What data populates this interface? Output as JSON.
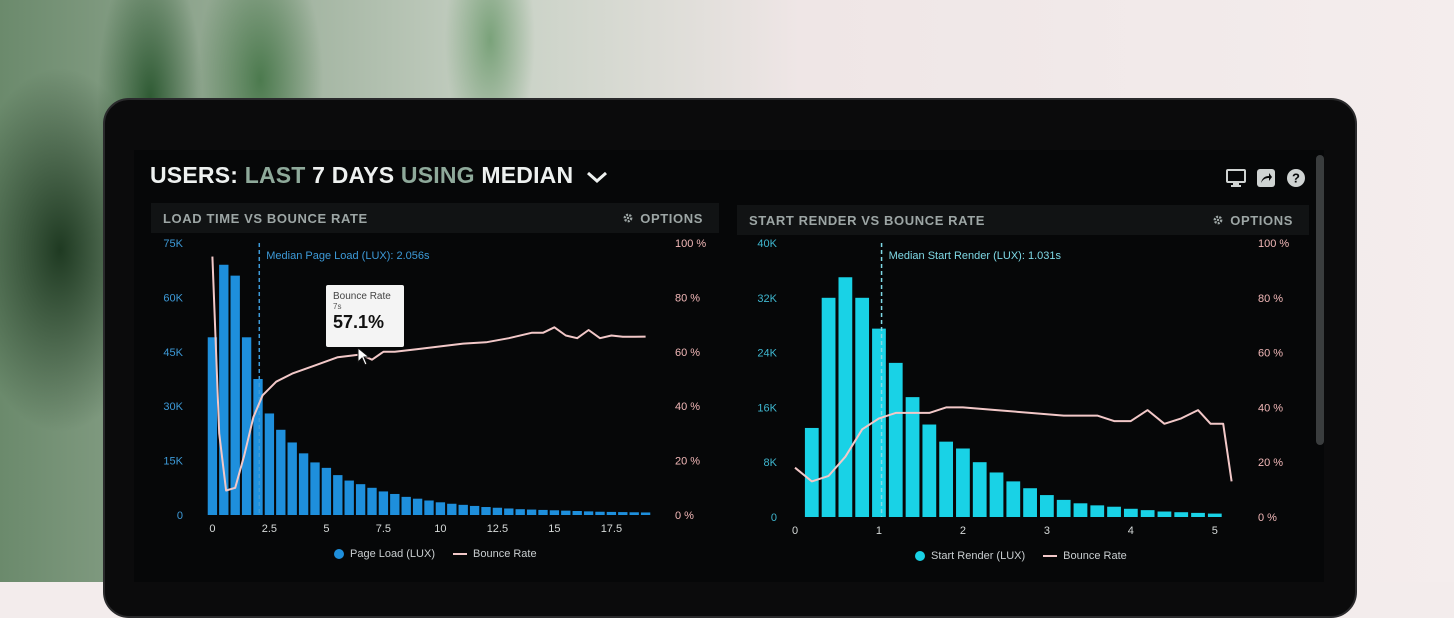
{
  "header": {
    "title_parts": [
      "USERS:",
      "LAST",
      "7 DAYS",
      "USING",
      "MEDIAN"
    ],
    "icons": [
      "monitor-icon",
      "share-icon",
      "help-icon"
    ]
  },
  "panels": [
    {
      "title": "LOAD TIME VS BOUNCE RATE",
      "options_label": "OPTIONS",
      "legend": [
        "Page Load (LUX)",
        "Bounce Rate"
      ]
    },
    {
      "title": "START RENDER VS BOUNCE RATE",
      "options_label": "OPTIONS",
      "legend": [
        "Start Render (LUX)",
        "Bounce Rate"
      ]
    }
  ],
  "tooltip": {
    "label": "Bounce Rate",
    "x": "7s",
    "value": "57.1%"
  },
  "colors": {
    "bar_left": "#1e8fdc",
    "bar_right": "#19d2e6",
    "bounce": "#f2c8c8",
    "median_left": "#3d9ad8",
    "median_right": "#7fd9e6"
  },
  "chart_data": [
    {
      "type": "bar",
      "series": [
        {
          "name": "Page Load (LUX)",
          "axis": "left",
          "x": [
            0,
            0.5,
            1,
            1.5,
            2,
            2.5,
            3,
            3.5,
            4,
            4.5,
            5,
            5.5,
            6,
            6.5,
            7,
            7.5,
            8,
            8.5,
            9,
            9.5,
            10,
            10.5,
            11,
            11.5,
            12,
            12.5,
            13,
            13.5,
            14,
            14.5,
            15,
            15.5,
            16,
            16.5,
            17,
            17.5,
            18,
            18.5,
            19
          ],
          "values": [
            49000,
            69000,
            66000,
            49000,
            37500,
            28000,
            23500,
            20000,
            17000,
            14500,
            13000,
            11000,
            9500,
            8500,
            7500,
            6500,
            5800,
            5000,
            4500,
            4000,
            3500,
            3100,
            2800,
            2500,
            2200,
            2000,
            1800,
            1600,
            1500,
            1400,
            1300,
            1200,
            1100,
            1000,
            900,
            850,
            800,
            750,
            700
          ]
        },
        {
          "name": "Bounce Rate",
          "axis": "right",
          "type": "line",
          "x": [
            0,
            0.3,
            0.6,
            1,
            1.4,
            1.8,
            2.2,
            2.8,
            3.5,
            4.5,
            5.5,
            6.5,
            7,
            7.5,
            8,
            9,
            10,
            11,
            12,
            13,
            14,
            14.5,
            15,
            15.5,
            16,
            16.5,
            17,
            17.5,
            18,
            18.5,
            19
          ],
          "values": [
            95,
            30,
            9,
            10,
            22,
            36,
            44,
            49,
            52,
            55,
            58,
            59,
            57.1,
            60,
            60,
            61,
            62,
            63,
            63.5,
            65,
            67,
            67,
            69,
            66,
            65,
            68,
            65,
            66,
            65.5,
            65.5,
            65.6
          ]
        }
      ],
      "x_ticks": [
        "0",
        "2.5",
        "5",
        "7.5",
        "10",
        "12.5",
        "15",
        "17.5"
      ],
      "y_left_ticks": [
        "0",
        "15K",
        "30K",
        "45K",
        "60K",
        "75K"
      ],
      "y_right_ticks": [
        "0 %",
        "20 %",
        "40 %",
        "60 %",
        "80 %",
        "100 %"
      ],
      "xlim": [
        -0.5,
        19.5
      ],
      "ylim_left": [
        0,
        75000
      ],
      "ylim_right": [
        0,
        100
      ],
      "median": {
        "x": 2.056,
        "label": "Median Page Load (LUX): 2.056s"
      }
    },
    {
      "type": "bar",
      "series": [
        {
          "name": "Start Render (LUX)",
          "axis": "left",
          "x": [
            0.2,
            0.4,
            0.6,
            0.8,
            1,
            1.2,
            1.4,
            1.6,
            1.8,
            2,
            2.2,
            2.4,
            2.6,
            2.8,
            3,
            3.2,
            3.4,
            3.6,
            3.8,
            4,
            4.2,
            4.4,
            4.6,
            4.8,
            5
          ],
          "values": [
            13000,
            32000,
            35000,
            32000,
            27500,
            22500,
            17500,
            13500,
            11000,
            10000,
            8000,
            6500,
            5200,
            4200,
            3200,
            2500,
            2000,
            1700,
            1500,
            1200,
            1000,
            800,
            700,
            600,
            500
          ]
        },
        {
          "name": "Bounce Rate",
          "axis": "right",
          "type": "line",
          "x": [
            0,
            0.2,
            0.4,
            0.6,
            0.8,
            1,
            1.2,
            1.4,
            1.6,
            1.8,
            2,
            2.4,
            2.8,
            3.2,
            3.6,
            3.8,
            4,
            4.2,
            4.4,
            4.6,
            4.8,
            4.95,
            5.1,
            5.2
          ],
          "values": [
            18,
            13,
            15,
            22,
            32,
            36,
            38,
            38,
            38,
            40,
            40,
            39,
            38,
            37,
            37,
            35,
            35,
            39,
            34,
            36,
            39,
            34,
            34,
            13
          ]
        }
      ],
      "x_ticks": [
        "0",
        "1",
        "2",
        "3",
        "4",
        "5"
      ],
      "y_left_ticks": [
        "0",
        "8K",
        "16K",
        "24K",
        "32K",
        "40K"
      ],
      "y_right_ticks": [
        "0 %",
        "20 %",
        "40 %",
        "60 %",
        "80 %",
        "100 %"
      ],
      "xlim": [
        0,
        5.3
      ],
      "ylim_left": [
        0,
        40000
      ],
      "ylim_right": [
        0,
        100
      ],
      "median": {
        "x": 1.031,
        "label": "Median Start Render (LUX): 1.031s"
      }
    }
  ]
}
